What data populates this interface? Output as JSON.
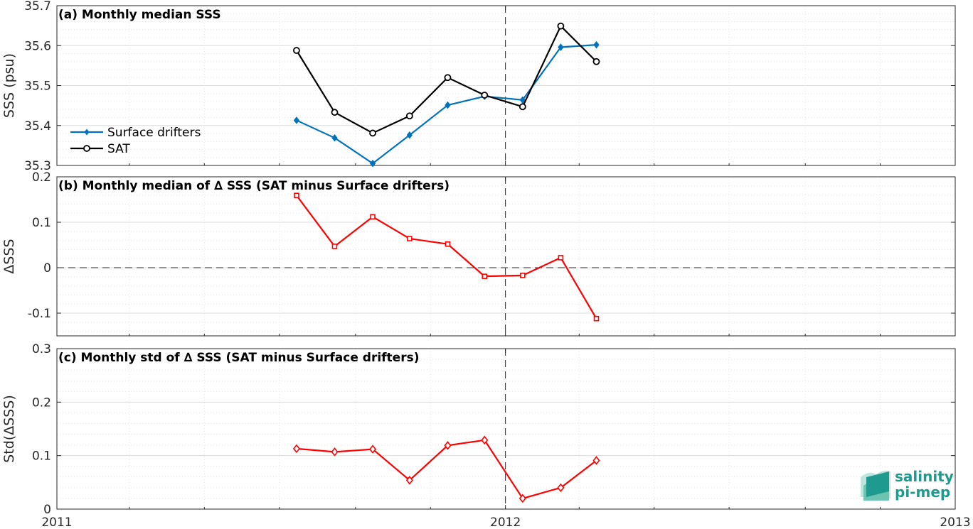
{
  "chart_data": [
    {
      "type": "line",
      "title": "(a) Monthly median SSS",
      "ylabel": "SSS (psu)",
      "xlim": [
        "2011-01-01",
        "2013-01-01"
      ],
      "ylim": [
        35.3,
        35.7
      ],
      "yticks": [
        "35.3",
        "35.4",
        "35.5",
        "35.6",
        "35.7"
      ],
      "xticks": [
        "2011",
        "2012",
        "2013"
      ],
      "x": [
        "2011-07-15",
        "2011-08-15",
        "2011-09-15",
        "2011-10-15",
        "2011-11-15",
        "2011-12-15",
        "2012-01-15",
        "2012-02-15",
        "2012-03-15",
        "2012-04-15"
      ],
      "series": [
        {
          "name": "Surface drifters",
          "color": "#0072bd",
          "marker": "diamond-filled",
          "values": [
            35.413,
            35.369,
            35.305,
            35.376,
            35.451,
            35.473,
            35.464,
            35.596,
            35.602,
            null
          ]
        },
        {
          "name": "SAT",
          "color": "#000000",
          "marker": "circle",
          "values": [
            35.588,
            35.433,
            35.381,
            35.424,
            35.52,
            35.476,
            35.447,
            35.649,
            35.56,
            null
          ]
        }
      ],
      "legend_position": "left-middle",
      "grid": true,
      "reference_lines": [
        {
          "axis": "x",
          "value": "2012-01-01",
          "style": "dashed"
        }
      ]
    },
    {
      "type": "line",
      "title": "(b) Monthly median of ∆ SSS (SAT minus Surface drifters)",
      "ylabel": "ΔSSS",
      "xlim": [
        "2011-01-01",
        "2013-01-01"
      ],
      "ylim": [
        -0.15,
        0.2
      ],
      "yticks": [
        "-0.1",
        "0",
        "0.1",
        "0.2"
      ],
      "x": [
        "2011-07-15",
        "2011-08-15",
        "2011-09-15",
        "2011-10-15",
        "2011-11-15",
        "2011-12-15",
        "2012-01-15",
        "2012-02-15",
        "2012-03-15"
      ],
      "series": [
        {
          "color": "#ff0000",
          "marker": "square",
          "values": [
            0.159,
            0.047,
            0.112,
            0.064,
            0.052,
            -0.019,
            -0.017,
            0.022,
            -0.112
          ]
        }
      ],
      "grid": true,
      "reference_lines": [
        {
          "axis": "x",
          "value": "2012-01-01",
          "style": "dashed"
        },
        {
          "axis": "y",
          "value": 0,
          "style": "dashed"
        }
      ]
    },
    {
      "type": "line",
      "title": "(c) Monthly std of ∆ SSS (SAT minus Surface drifters)",
      "ylabel": "Std(ΔSSS)",
      "xlim": [
        "2011-01-01",
        "2013-01-01"
      ],
      "ylim": [
        0,
        0.3
      ],
      "yticks": [
        "0",
        "0.1",
        "0.2",
        "0.3"
      ],
      "x": [
        "2011-07-15",
        "2011-08-15",
        "2011-09-15",
        "2011-10-15",
        "2011-11-15",
        "2011-12-15",
        "2012-01-15",
        "2012-02-15",
        "2012-03-15"
      ],
      "series": [
        {
          "color": "#ff0000",
          "marker": "diamond",
          "values": [
            0.113,
            0.107,
            0.112,
            0.054,
            0.119,
            0.129,
            0.02,
            0.04,
            0.091
          ]
        }
      ],
      "grid": true,
      "reference_lines": [
        {
          "axis": "x",
          "value": "2012-01-01",
          "style": "dashed"
        }
      ]
    }
  ],
  "logo": {
    "line1": "salinity",
    "line2": "pi-mep",
    "color": "#1f9a8f"
  }
}
